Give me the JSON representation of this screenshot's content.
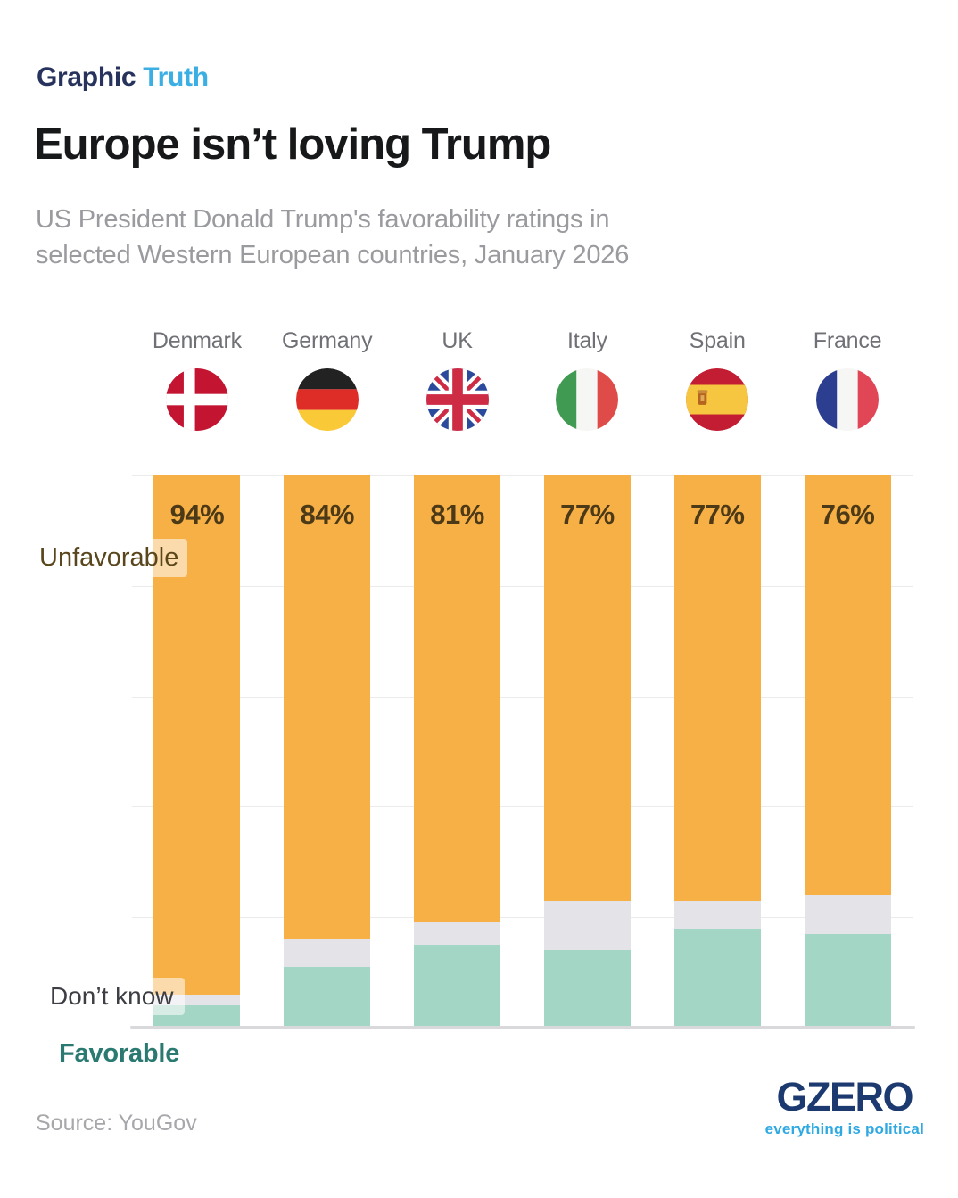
{
  "header": {
    "kicker_primary": "Graphic",
    "kicker_accent": "Truth",
    "title": "Europe isn’t loving Trump",
    "subtitle_line1": "US President Donald Trump's favorability ratings in",
    "subtitle_line2": "selected Western European countries, January 2026"
  },
  "chart_data": {
    "type": "bar",
    "stacked": true,
    "orientation": "vertical",
    "unit": "%",
    "ylim": [
      0,
      100
    ],
    "gridlines_pct": [
      0,
      20,
      40,
      60,
      80,
      100
    ],
    "grid": true,
    "legend_position": "annotations-left",
    "categories": [
      "Denmark",
      "Germany",
      "UK",
      "Italy",
      "Spain",
      "France"
    ],
    "flags": [
      "denmark",
      "germany",
      "uk",
      "italy",
      "spain",
      "france"
    ],
    "series": [
      {
        "name": "Unfavorable",
        "color": "#F6B045",
        "values": [
          94,
          84,
          81,
          77,
          77,
          76
        ]
      },
      {
        "name": "Don’t know",
        "color": "#E4E4E8",
        "values": [
          2,
          5,
          4,
          9,
          5,
          7
        ]
      },
      {
        "name": "Favorable",
        "color": "#A4D6C6",
        "values": [
          4,
          11,
          15,
          14,
          18,
          17
        ]
      }
    ],
    "bar_labels": [
      "94%",
      "84%",
      "81%",
      "77%",
      "77%",
      "76%"
    ],
    "bar_label_color": "#4C3917"
  },
  "annotations": {
    "unfavorable": "Unfavorable",
    "dont_know": "Don’t know",
    "favorable": "Favorable"
  },
  "footer": {
    "source": "Source: YouGov",
    "logo_text": "GZERO",
    "logo_tagline": "everything is political"
  },
  "palette": {
    "kicker_primary": "#27335C",
    "kicker_accent": "#3BAFE4",
    "title": "#17181A",
    "subtitle": "#9A9B9F",
    "unfavorable_label": "#5A461C",
    "dont_know_label": "#3C3E44",
    "favorable_label": "#2B7A72",
    "gridline": "#EBEBEC",
    "logo_navy": "#1C3A70",
    "logo_blue": "#2FA9E2"
  }
}
